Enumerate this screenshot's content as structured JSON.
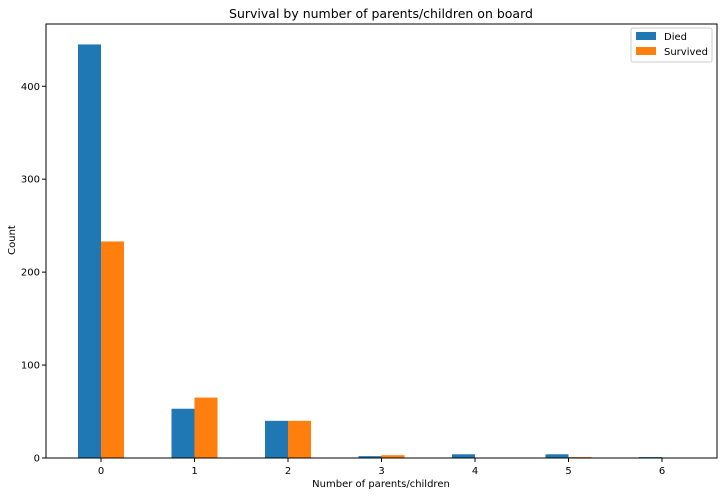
{
  "chart_data": {
    "type": "bar",
    "title": "Survival by number of parents/children on board",
    "xlabel": "Number of parents/children",
    "ylabel": "Count",
    "categories": [
      "0",
      "1",
      "2",
      "3",
      "4",
      "5",
      "6"
    ],
    "series": [
      {
        "name": "Died",
        "color": "#1f77b4",
        "values": [
          445,
          53,
          40,
          2,
          4,
          4,
          1
        ]
      },
      {
        "name": "Survived",
        "color": "#ff7f0e",
        "values": [
          233,
          65,
          40,
          3,
          0,
          1,
          0
        ]
      }
    ],
    "yticks": [
      0,
      100,
      200,
      300,
      400
    ],
    "ylim": [
      0,
      467
    ],
    "grid": false,
    "legend_position": "top-right"
  }
}
